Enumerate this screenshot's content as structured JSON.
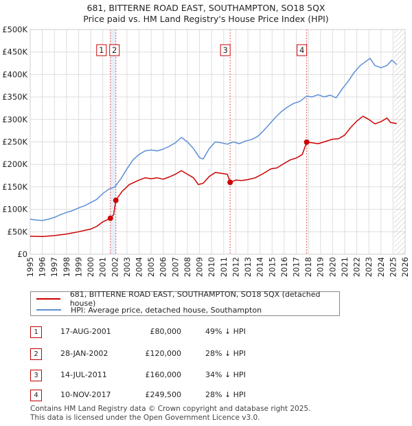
{
  "title_line1": "681, BITTERNE ROAD EAST, SOUTHAMPTON, SO18 5QX",
  "title_line2": "Price paid vs. HM Land Registry's House Price Index (HPI)",
  "colors": {
    "property": "#cc0000",
    "hpi": "#5b8ed6",
    "shade": "#e8eef8",
    "grid": "#dddddd",
    "marker": "#cc0000"
  },
  "chart_data": {
    "type": "line",
    "y_ticks": [
      {
        "value": 0,
        "label": "£0"
      },
      {
        "value": 50000,
        "label": "£50K"
      },
      {
        "value": 100000,
        "label": "£100K"
      },
      {
        "value": 150000,
        "label": "£150K"
      },
      {
        "value": 200000,
        "label": "£200K"
      },
      {
        "value": 250000,
        "label": "£250K"
      },
      {
        "value": 300000,
        "label": "£300K"
      },
      {
        "value": 350000,
        "label": "£350K"
      },
      {
        "value": 400000,
        "label": "£400K"
      },
      {
        "value": 450000,
        "label": "£450K"
      },
      {
        "value": 500000,
        "label": "£500K"
      }
    ],
    "x_ticks": [
      "1995",
      "1996",
      "1997",
      "1998",
      "1999",
      "2000",
      "2001",
      "2002",
      "2003",
      "2004",
      "2005",
      "2006",
      "2007",
      "2008",
      "2009",
      "2010",
      "2011",
      "2012",
      "2013",
      "2014",
      "2015",
      "2016",
      "2017",
      "2018",
      "2019",
      "2020",
      "2021",
      "2022",
      "2023",
      "2024",
      "2025",
      "2026"
    ],
    "xlim": [
      1995,
      2026
    ],
    "ylim": [
      0,
      500000
    ],
    "shaded_region": {
      "from": 2001.63,
      "to": 2002.08
    },
    "hatched_from": 2025.1,
    "series": [
      {
        "name": "681, BITTERNE ROAD EAST, SOUTHAMPTON, SO18 5QX (detached house)",
        "color": "#cc0000",
        "points": [
          [
            1995.0,
            40000
          ],
          [
            1996.0,
            39500
          ],
          [
            1997.0,
            41500
          ],
          [
            1998.0,
            45000
          ],
          [
            1999.0,
            50000
          ],
          [
            2000.0,
            56000
          ],
          [
            2000.5,
            62000
          ],
          [
            2001.0,
            72000
          ],
          [
            2001.4,
            77000
          ],
          [
            2001.63,
            80000
          ],
          [
            2001.9,
            88000
          ],
          [
            2002.08,
            120000
          ],
          [
            2002.6,
            140000
          ],
          [
            2003.2,
            155000
          ],
          [
            2004.0,
            165000
          ],
          [
            2004.5,
            170000
          ],
          [
            2005.0,
            168000
          ],
          [
            2005.5,
            170000
          ],
          [
            2006.0,
            167000
          ],
          [
            2006.5,
            172000
          ],
          [
            2007.0,
            178000
          ],
          [
            2007.5,
            186000
          ],
          [
            2008.0,
            178000
          ],
          [
            2008.5,
            170000
          ],
          [
            2008.9,
            155000
          ],
          [
            2009.3,
            158000
          ],
          [
            2009.8,
            173000
          ],
          [
            2010.3,
            182000
          ],
          [
            2010.8,
            180000
          ],
          [
            2011.3,
            178000
          ],
          [
            2011.53,
            160000
          ],
          [
            2012.0,
            165000
          ],
          [
            2012.5,
            164000
          ],
          [
            2013.0,
            166000
          ],
          [
            2013.6,
            170000
          ],
          [
            2014.3,
            180000
          ],
          [
            2014.9,
            190000
          ],
          [
            2015.4,
            192000
          ],
          [
            2016.0,
            202000
          ],
          [
            2016.5,
            210000
          ],
          [
            2017.0,
            214000
          ],
          [
            2017.5,
            222000
          ],
          [
            2017.86,
            249500
          ],
          [
            2018.3,
            248000
          ],
          [
            2018.8,
            246000
          ],
          [
            2019.3,
            250000
          ],
          [
            2020.0,
            256000
          ],
          [
            2020.5,
            257000
          ],
          [
            2021.0,
            265000
          ],
          [
            2021.5,
            282000
          ],
          [
            2022.0,
            296000
          ],
          [
            2022.5,
            307000
          ],
          [
            2023.0,
            300000
          ],
          [
            2023.5,
            290000
          ],
          [
            2024.0,
            295000
          ],
          [
            2024.5,
            303000
          ],
          [
            2024.8,
            293000
          ],
          [
            2025.3,
            291000
          ]
        ]
      },
      {
        "name": "HPI: Average price, detached house, Southampton",
        "color": "#5b8ed6",
        "points": [
          [
            1995.0,
            78000
          ],
          [
            1995.5,
            76000
          ],
          [
            1996.0,
            75000
          ],
          [
            1996.5,
            78000
          ],
          [
            1997.0,
            82000
          ],
          [
            1997.5,
            88000
          ],
          [
            1998.0,
            93000
          ],
          [
            1998.5,
            97000
          ],
          [
            1999.0,
            103000
          ],
          [
            1999.5,
            108000
          ],
          [
            2000.0,
            115000
          ],
          [
            2000.5,
            122000
          ],
          [
            2001.0,
            135000
          ],
          [
            2001.5,
            145000
          ],
          [
            2002.0,
            150000
          ],
          [
            2002.5,
            168000
          ],
          [
            2003.0,
            190000
          ],
          [
            2003.5,
            210000
          ],
          [
            2004.0,
            222000
          ],
          [
            2004.5,
            230000
          ],
          [
            2005.0,
            232000
          ],
          [
            2005.5,
            230000
          ],
          [
            2006.0,
            234000
          ],
          [
            2006.5,
            240000
          ],
          [
            2007.0,
            248000
          ],
          [
            2007.5,
            260000
          ],
          [
            2008.0,
            250000
          ],
          [
            2008.5,
            235000
          ],
          [
            2009.0,
            215000
          ],
          [
            2009.3,
            212000
          ],
          [
            2009.8,
            235000
          ],
          [
            2010.3,
            250000
          ],
          [
            2010.8,
            248000
          ],
          [
            2011.3,
            245000
          ],
          [
            2011.8,
            250000
          ],
          [
            2012.3,
            246000
          ],
          [
            2012.8,
            252000
          ],
          [
            2013.3,
            255000
          ],
          [
            2013.8,
            262000
          ],
          [
            2014.3,
            275000
          ],
          [
            2014.8,
            290000
          ],
          [
            2015.3,
            305000
          ],
          [
            2015.8,
            318000
          ],
          [
            2016.3,
            328000
          ],
          [
            2016.8,
            336000
          ],
          [
            2017.3,
            340000
          ],
          [
            2017.86,
            352000
          ],
          [
            2018.3,
            350000
          ],
          [
            2018.8,
            355000
          ],
          [
            2019.3,
            350000
          ],
          [
            2019.8,
            354000
          ],
          [
            2020.3,
            348000
          ],
          [
            2020.8,
            368000
          ],
          [
            2021.3,
            385000
          ],
          [
            2021.8,
            405000
          ],
          [
            2022.3,
            420000
          ],
          [
            2022.8,
            430000
          ],
          [
            2023.1,
            436000
          ],
          [
            2023.5,
            420000
          ],
          [
            2024.0,
            415000
          ],
          [
            2024.5,
            420000
          ],
          [
            2024.9,
            432000
          ],
          [
            2025.3,
            422000
          ]
        ]
      }
    ],
    "sales": [
      {
        "label": "1",
        "x": 2001.63,
        "value": 80000
      },
      {
        "label": "2",
        "x": 2002.08,
        "value": 120000
      },
      {
        "label": "3",
        "x": 2011.53,
        "value": 160000
      },
      {
        "label": "4",
        "x": 2017.86,
        "value": 249500
      }
    ]
  },
  "legend": {
    "property_label": "681, BITTERNE ROAD EAST, SOUTHAMPTON, SO18 5QX (detached house)",
    "hpi_label": "HPI: Average price, detached house, Southampton"
  },
  "transactions": [
    {
      "num": "1",
      "date": "17-AUG-2001",
      "price": "£80,000",
      "delta": "49% ↓ HPI"
    },
    {
      "num": "2",
      "date": "28-JAN-2002",
      "price": "£120,000",
      "delta": "28% ↓ HPI"
    },
    {
      "num": "3",
      "date": "14-JUL-2011",
      "price": "£160,000",
      "delta": "34% ↓ HPI"
    },
    {
      "num": "4",
      "date": "10-NOV-2017",
      "price": "£249,500",
      "delta": "28% ↓ HPI"
    }
  ],
  "footer": {
    "line1": "Contains HM Land Registry data © Crown copyright and database right 2025.",
    "line2": "This data is licensed under the Open Government Licence v3.0."
  }
}
